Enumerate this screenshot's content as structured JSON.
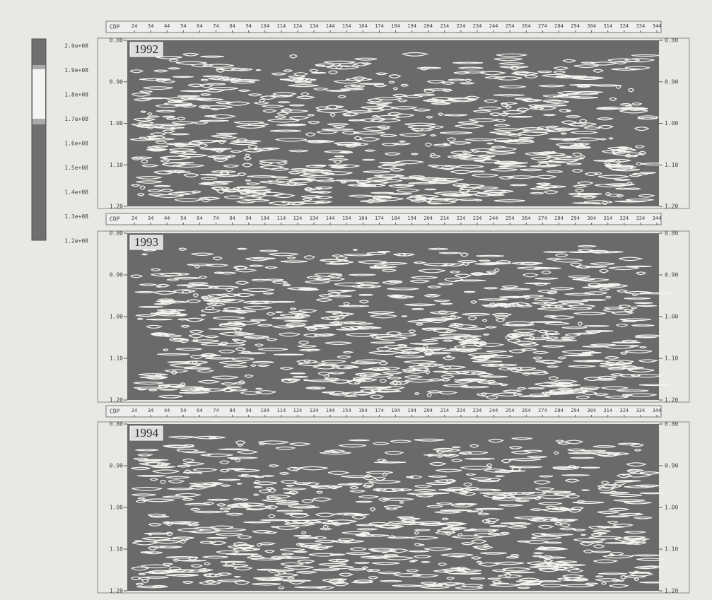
{
  "figure": {
    "colorbar": {
      "labels": [
        "2.0e+08",
        "1.9e+08",
        "1.8e+08",
        "1.7e+08",
        "1.6e+08",
        "1.5e+08",
        "1.4e+08",
        "1.3e+08",
        "1.2e+08"
      ]
    },
    "panels": [
      {
        "label": "1992",
        "x_axis_label": "CDP",
        "x_ticks": [
          "24",
          "34",
          "44",
          "54",
          "64",
          "74",
          "84",
          "94",
          "104",
          "114",
          "124",
          "134",
          "144",
          "154",
          "164",
          "174",
          "184",
          "194",
          "204",
          "214",
          "224",
          "234",
          "244",
          "254",
          "264",
          "274",
          "284",
          "294",
          "304",
          "314",
          "324",
          "334",
          "344"
        ],
        "y_ticks": [
          "0.80",
          "0.90",
          "1.00",
          "1.10",
          "1.20"
        ]
      },
      {
        "label": "1993",
        "x_axis_label": "CDP",
        "x_ticks": [
          "24",
          "34",
          "44",
          "54",
          "64",
          "74",
          "84",
          "94",
          "104",
          "114",
          "124",
          "134",
          "144",
          "154",
          "164",
          "174",
          "184",
          "194",
          "204",
          "214",
          "224",
          "234",
          "244",
          "254",
          "264",
          "274",
          "284",
          "294",
          "304",
          "314",
          "324",
          "334",
          "344"
        ],
        "y_ticks": [
          "0.80",
          "0.90",
          "1.00",
          "1.10",
          "1.20"
        ]
      },
      {
        "label": "1994",
        "x_axis_label": "CDP",
        "x_ticks": [
          "24",
          "34",
          "44",
          "54",
          "64",
          "74",
          "84",
          "94",
          "104",
          "114",
          "124",
          "134",
          "144",
          "154",
          "164",
          "174",
          "184",
          "194",
          "204",
          "214",
          "224",
          "234",
          "244",
          "254",
          "264",
          "274",
          "284",
          "294",
          "304",
          "314",
          "324",
          "334",
          "344"
        ],
        "y_ticks": [
          "0.80",
          "0.90",
          "1.00",
          "1.10",
          "1.20"
        ]
      }
    ]
  }
}
